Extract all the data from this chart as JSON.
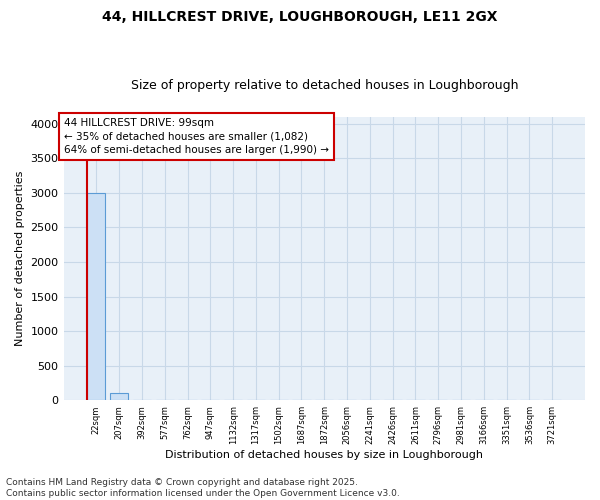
{
  "title1": "44, HILLCREST DRIVE, LOUGHBOROUGH, LE11 2GX",
  "title2": "Size of property relative to detached houses in Loughborough",
  "xlabel": "Distribution of detached houses by size in Loughborough",
  "ylabel": "Number of detached properties",
  "categories": [
    "22sqm",
    "207sqm",
    "392sqm",
    "577sqm",
    "762sqm",
    "947sqm",
    "1132sqm",
    "1317sqm",
    "1502sqm",
    "1687sqm",
    "1872sqm",
    "2056sqm",
    "2241sqm",
    "2426sqm",
    "2611sqm",
    "2796sqm",
    "2981sqm",
    "3166sqm",
    "3351sqm",
    "3536sqm",
    "3721sqm"
  ],
  "values": [
    3000,
    100,
    0,
    0,
    0,
    0,
    0,
    0,
    0,
    0,
    0,
    0,
    0,
    0,
    0,
    0,
    0,
    0,
    0,
    0,
    0
  ],
  "bar_color": "#cce0f5",
  "bar_edge_color": "#5b9bd5",
  "grid_color": "#c8d8e8",
  "background_color": "#e8f0f8",
  "annotation_text": "44 HILLCREST DRIVE: 99sqm\n← 35% of detached houses are smaller (1,082)\n64% of semi-detached houses are larger (1,990) →",
  "annotation_box_color": "#ffffff",
  "annotation_border_color": "#cc0000",
  "vline_color": "#cc0000",
  "ylim": [
    0,
    4100
  ],
  "yticks": [
    0,
    500,
    1000,
    1500,
    2000,
    2500,
    3000,
    3500,
    4000
  ],
  "footnote": "Contains HM Land Registry data © Crown copyright and database right 2025.\nContains public sector information licensed under the Open Government Licence v3.0.",
  "title_fontsize": 10,
  "subtitle_fontsize": 9,
  "annotation_fontsize": 7.5,
  "footnote_fontsize": 6.5,
  "ylabel_fontsize": 8,
  "xlabel_fontsize": 8
}
